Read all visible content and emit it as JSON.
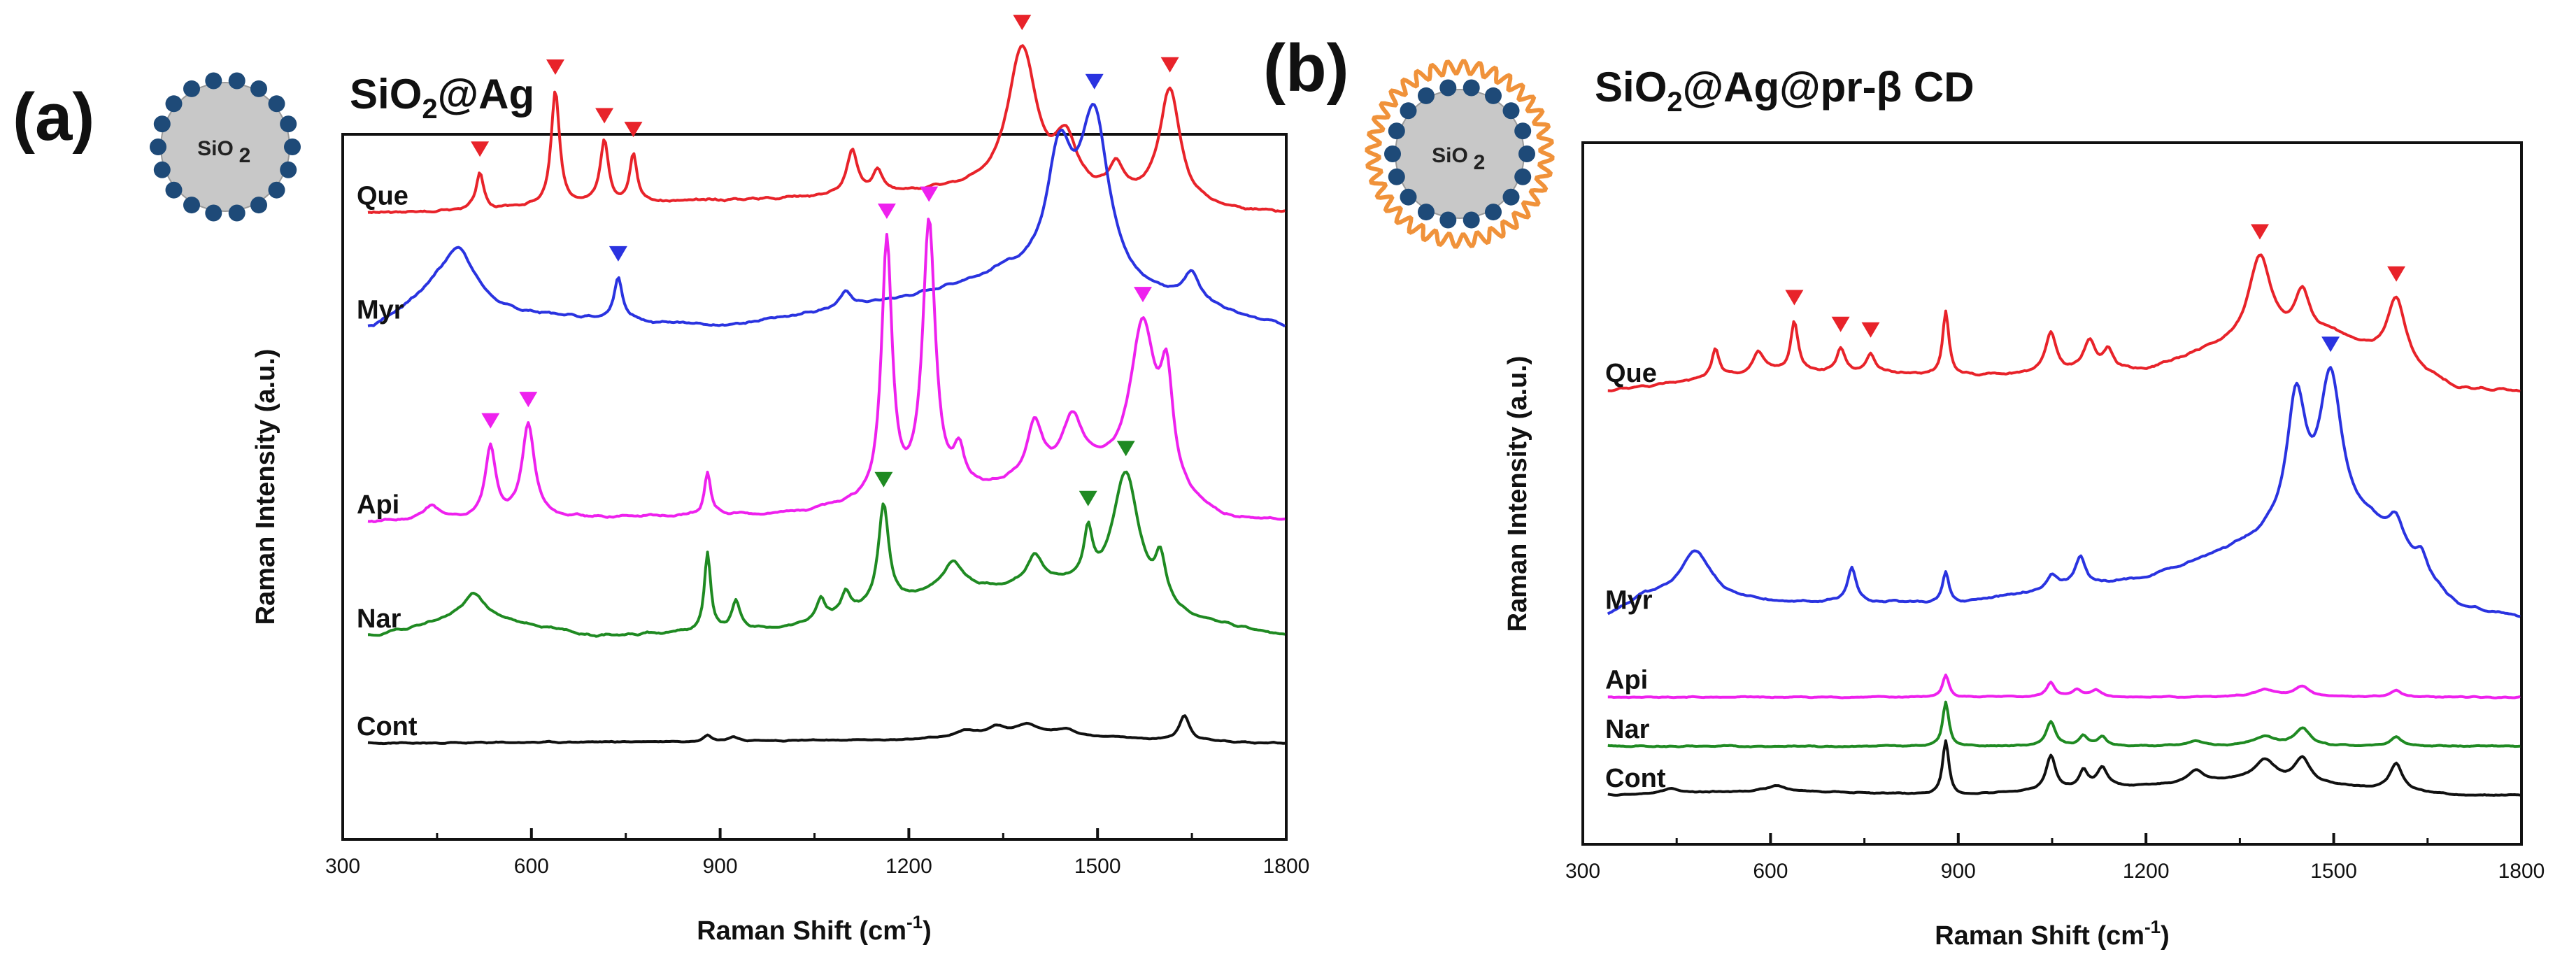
{
  "figure": {
    "panels": [
      "(a)",
      "(b)"
    ],
    "insets": [
      {
        "label": "SiO",
        "subscript": "2",
        "style": "silver nanoparticle shell"
      },
      {
        "label": "SiO",
        "subscript": "2",
        "style": "silver nanoparticle shell with beta-cyclodextrin layer"
      }
    ]
  },
  "colors": {
    "Que": "#e8232a",
    "Myr": "#2a33e0",
    "Api": "#ee21ee",
    "Nar": "#1f8a22",
    "Cont": "#111111",
    "shell": "#c8c8c8",
    "particle": "#1e4a78",
    "cd": "#f0923a"
  },
  "chart_data": [
    {
      "type": "line",
      "panel": "(a)",
      "title": "SiO2@Ag",
      "title_parts": [
        "SiO",
        "2",
        "@Ag"
      ],
      "xlabel": "Raman Shift (cm-1)",
      "xlabel_parts": [
        "Raman Shift (cm",
        "-1",
        ")"
      ],
      "ylabel": "Raman Intensity (a.u.)",
      "xlim": [
        300,
        1800
      ],
      "xticks": [
        300,
        600,
        900,
        1200,
        1500,
        1800
      ],
      "yticks": "none",
      "series": [
        {
          "name": "Que",
          "baseline": 0.14,
          "noise": 0.6,
          "seed": 3,
          "bg": [
            [
              380,
              0.0
            ],
            [
              1300,
              0.03
            ],
            [
              1480,
              0.02
            ],
            [
              1720,
              0.0
            ]
          ],
          "peaks": [
            [
              518,
              0.05,
              7
            ],
            [
              638,
              0.16,
              8
            ],
            [
              716,
              0.09,
              8
            ],
            [
              762,
              0.07,
              7
            ],
            [
              1110,
              0.06,
              10
            ],
            [
              1150,
              0.03,
              10
            ],
            [
              1380,
              0.2,
              28
            ],
            [
              1450,
              0.07,
              20
            ],
            [
              1530,
              0.04,
              15
            ],
            [
              1615,
              0.16,
              20
            ]
          ],
          "markers": [
            518,
            638,
            716,
            762,
            1380,
            1615
          ]
        },
        {
          "name": "Myr",
          "baseline": 0.31,
          "noise": 0.6,
          "seed": 7,
          "bg": [
            [
              350,
              0.0
            ],
            [
              450,
              0.05
            ],
            [
              560,
              0.02
            ],
            [
              900,
              0.0
            ],
            [
              1200,
              0.04
            ],
            [
              1350,
              0.07
            ],
            [
              1650,
              0.03
            ],
            [
              1800,
              0.0
            ]
          ],
          "peaks": [
            [
              485,
              0.07,
              30
            ],
            [
              738,
              0.06,
              8
            ],
            [
              1100,
              0.02,
              12
            ],
            [
              1440,
              0.17,
              25
            ],
            [
              1495,
              0.23,
              28
            ],
            [
              1650,
              0.04,
              15
            ]
          ],
          "markers": [
            738,
            1495
          ]
        },
        {
          "name": "Api",
          "baseline": 0.6,
          "noise": 0.6,
          "seed": 11,
          "bg": [
            [
              350,
              0.0
            ],
            [
              1000,
              0.01
            ],
            [
              1300,
              0.04
            ],
            [
              1500,
              0.06
            ],
            [
              1700,
              0.0
            ]
          ],
          "peaks": [
            [
              440,
              0.02,
              15
            ],
            [
              535,
              0.1,
              10
            ],
            [
              595,
              0.13,
              12
            ],
            [
              880,
              0.06,
              6
            ],
            [
              1165,
              0.36,
              10
            ],
            [
              1232,
              0.38,
              12
            ],
            [
              1280,
              0.05,
              10
            ],
            [
              1400,
              0.08,
              15
            ],
            [
              1460,
              0.08,
              20
            ],
            [
              1572,
              0.23,
              25
            ],
            [
              1610,
              0.14,
              12
            ]
          ],
          "markers": [
            535,
            595,
            1165,
            1232,
            1572
          ]
        },
        {
          "name": "Nar",
          "baseline": 0.77,
          "noise": 0.5,
          "seed": 19,
          "bg": [
            [
              350,
              0.0
            ],
            [
              500,
              0.03
            ],
            [
              700,
              0.0
            ],
            [
              1000,
              0.01
            ],
            [
              1250,
              0.06
            ],
            [
              1450,
              0.07
            ],
            [
              1650,
              0.02
            ],
            [
              1800,
              0.0
            ]
          ],
          "peaks": [
            [
              510,
              0.03,
              20
            ],
            [
              880,
              0.11,
              6
            ],
            [
              925,
              0.04,
              8
            ],
            [
              1060,
              0.03,
              8
            ],
            [
              1100,
              0.03,
              8
            ],
            [
              1160,
              0.14,
              10
            ],
            [
              1270,
              0.04,
              20
            ],
            [
              1400,
              0.04,
              15
            ],
            [
              1485,
              0.07,
              8
            ],
            [
              1545,
              0.18,
              25
            ],
            [
              1600,
              0.06,
              10
            ]
          ],
          "markers": [
            1160,
            1485,
            1545
          ]
        },
        {
          "name": "Cont",
          "baseline": 0.93,
          "noise": 0.3,
          "seed": 23,
          "bg": [
            [
              350,
              0.0
            ],
            [
              1200,
              0.005
            ],
            [
              1380,
              0.015
            ],
            [
              1600,
              0.005
            ],
            [
              1800,
              0.0
            ]
          ],
          "peaks": [
            [
              880,
              0.008,
              8
            ],
            [
              920,
              0.006,
              8
            ],
            [
              1290,
              0.008,
              20
            ],
            [
              1340,
              0.01,
              15
            ],
            [
              1390,
              0.012,
              20
            ],
            [
              1450,
              0.008,
              15
            ],
            [
              1638,
              0.035,
              10
            ]
          ],
          "markers": []
        }
      ]
    },
    {
      "type": "line",
      "panel": "(b)",
      "title": "SiO2@Ag@pr-β CD",
      "title_parts": [
        "SiO",
        "2",
        "@Ag@pr-β CD"
      ],
      "xlabel": "Raman Shift (cm-1)",
      "xlabel_parts": [
        "Raman Shift (cm",
        "-1",
        ")"
      ],
      "ylabel": "Raman Intensity (a.u.)",
      "xlim": [
        300,
        1800
      ],
      "xticks": [
        300,
        600,
        900,
        1200,
        1500,
        1800
      ],
      "yticks": "none",
      "series": [
        {
          "name": "Que",
          "baseline": 0.34,
          "noise": 0.8,
          "seed": 31,
          "bg": [
            [
              340,
              0.0
            ],
            [
              480,
              0.02
            ],
            [
              600,
              0.04
            ],
            [
              900,
              0.03
            ],
            [
              1200,
              0.04
            ],
            [
              1300,
              0.08
            ],
            [
              1500,
              0.11
            ],
            [
              1700,
              0.0
            ],
            [
              1800,
              0.0
            ]
          ],
          "peaks": [
            [
              512,
              0.06,
              7
            ],
            [
              580,
              0.04,
              10
            ],
            [
              638,
              0.1,
              7
            ],
            [
              712,
              0.05,
              8
            ],
            [
              760,
              0.04,
              8
            ],
            [
              880,
              0.13,
              6
            ],
            [
              1048,
              0.08,
              10
            ],
            [
              1110,
              0.06,
              12
            ],
            [
              1140,
              0.04,
              10
            ],
            [
              1382,
              0.18,
              22
            ],
            [
              1450,
              0.09,
              15
            ],
            [
              1600,
              0.13,
              18
            ]
          ],
          "markers": [
            638,
            712,
            760,
            1382,
            1600
          ]
        },
        {
          "name": "Myr",
          "baseline": 0.71,
          "noise": 0.8,
          "seed": 37,
          "bg": [
            [
              340,
              0.0
            ],
            [
              400,
              0.04
            ],
            [
              600,
              0.03
            ],
            [
              900,
              0.03
            ],
            [
              1200,
              0.08
            ],
            [
              1400,
              0.16
            ],
            [
              1560,
              0.18
            ],
            [
              1700,
              0.02
            ],
            [
              1800,
              0.0
            ]
          ],
          "peaks": [
            [
              480,
              0.1,
              30
            ],
            [
              730,
              0.07,
              8
            ],
            [
              880,
              0.06,
              6
            ],
            [
              1050,
              0.03,
              10
            ],
            [
              1095,
              0.06,
              10
            ],
            [
              1440,
              0.27,
              18
            ],
            [
              1495,
              0.31,
              22
            ],
            [
              1600,
              0.06,
              15
            ],
            [
              1640,
              0.04,
              10
            ]
          ],
          "markers": [
            1495
          ]
        },
        {
          "name": "Api",
          "baseline": 0.84,
          "noise": 0.4,
          "seed": 41,
          "bg": [
            [
              340,
              0.0
            ],
            [
              1800,
              0.0
            ]
          ],
          "peaks": [
            [
              880,
              0.045,
              6
            ],
            [
              1048,
              0.03,
              8
            ],
            [
              1090,
              0.015,
              8
            ],
            [
              1120,
              0.015,
              10
            ],
            [
              1390,
              0.015,
              20
            ],
            [
              1450,
              0.02,
              15
            ],
            [
              1600,
              0.015,
              10
            ]
          ],
          "markers": []
        },
        {
          "name": "Nar",
          "baseline": 0.92,
          "noise": 0.4,
          "seed": 43,
          "bg": [
            [
              340,
              0.0
            ],
            [
              1800,
              0.0
            ]
          ],
          "peaks": [
            [
              880,
              0.09,
              6
            ],
            [
              1048,
              0.05,
              9
            ],
            [
              1100,
              0.02,
              8
            ],
            [
              1130,
              0.02,
              8
            ],
            [
              1280,
              0.01,
              15
            ],
            [
              1390,
              0.02,
              20
            ],
            [
              1450,
              0.035,
              15
            ],
            [
              1600,
              0.02,
              10
            ]
          ],
          "markers": []
        },
        {
          "name": "Cont",
          "baseline": 1.0,
          "noise": 0.4,
          "seed": 47,
          "bg": [
            [
              340,
              0.0
            ],
            [
              600,
              0.01
            ],
            [
              900,
              0.0
            ],
            [
              1350,
              0.03
            ],
            [
              1500,
              0.02
            ],
            [
              1700,
              0.0
            ],
            [
              1800,
              0.0
            ]
          ],
          "peaks": [
            [
              440,
              0.01,
              15
            ],
            [
              610,
              0.01,
              15
            ],
            [
              880,
              0.11,
              6
            ],
            [
              1048,
              0.07,
              9
            ],
            [
              1100,
              0.035,
              8
            ],
            [
              1130,
              0.04,
              10
            ],
            [
              1280,
              0.025,
              15
            ],
            [
              1390,
              0.045,
              20
            ],
            [
              1450,
              0.05,
              15
            ],
            [
              1600,
              0.055,
              12
            ]
          ],
          "markers": []
        }
      ]
    }
  ]
}
